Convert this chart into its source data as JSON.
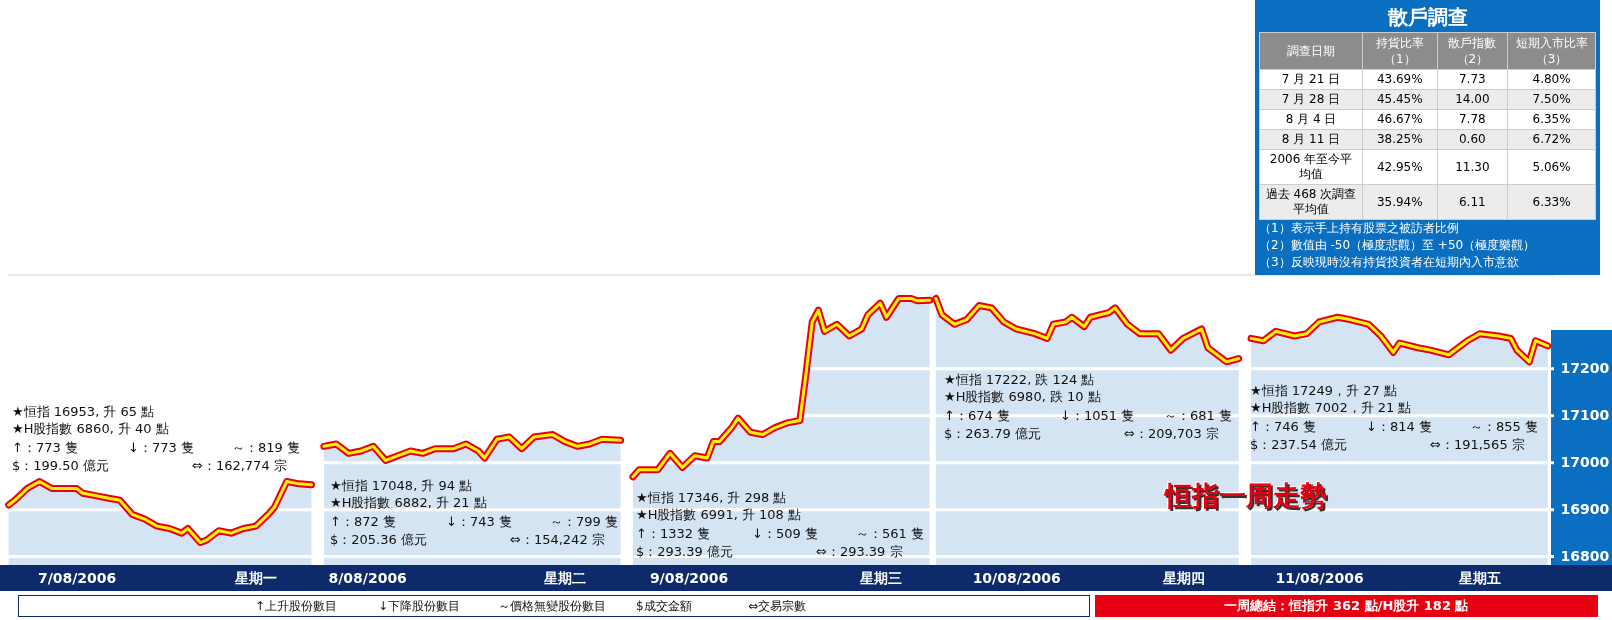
{
  "chart_data": [
    {
      "type": "area",
      "title": "恒指一周走勢",
      "categories": [
        null,
        null,
        null,
        null,
        null,
        null,
        null,
        null,
        null,
        null,
        null,
        "7/08/2006",
        null,
        null,
        null,
        null,
        null,
        null,
        null,
        null,
        null,
        null,
        null,
        null,
        null,
        null,
        null,
        null,
        null,
        null,
        null,
        null,
        null,
        null,
        null,
        null,
        null,
        null,
        null,
        null,
        "星期一",
        null,
        null,
        null,
        null,
        null,
        null,
        null,
        null,
        null,
        null,
        null,
        null,
        null,
        null,
        null,
        null,
        null,
        "8/08/2006",
        null,
        null,
        null,
        null,
        null,
        null,
        null,
        null,
        null,
        null,
        null,
        null,
        null,
        null,
        null,
        null,
        null,
        null,
        null,
        null,
        null,
        null,
        null,
        null,
        null,
        null,
        null,
        null,
        null,
        null,
        null,
        "星期二",
        null,
        null,
        null,
        null,
        null,
        null,
        null,
        null,
        null,
        null,
        null,
        null,
        null,
        null,
        null,
        null,
        null,
        null,
        null,
        "9/08/2006",
        null,
        null,
        null,
        null,
        null,
        null,
        null,
        null,
        null,
        null,
        null,
        null,
        null,
        null,
        null,
        null,
        null,
        null,
        null,
        null,
        null,
        null,
        null,
        null,
        null,
        null,
        null,
        null,
        null,
        null,
        "星期三",
        null,
        null,
        null,
        null,
        null,
        null,
        null,
        null,
        null,
        null,
        null,
        null,
        null,
        null,
        null,
        null,
        null,
        null,
        null,
        null,
        null,
        "10/08/2006",
        null,
        null,
        null,
        null,
        null,
        null,
        null,
        null,
        null,
        null,
        null,
        null,
        null,
        null,
        null,
        null,
        null,
        null,
        null,
        null,
        null,
        null,
        null,
        null,
        null,
        null,
        "星期四",
        null,
        null,
        null,
        null,
        null,
        null,
        null,
        null,
        null,
        null,
        null,
        null,
        null,
        null,
        null,
        null,
        null,
        null,
        null,
        null,
        null,
        "11/08/2006",
        null,
        null,
        null,
        null,
        null,
        null,
        null,
        null,
        null,
        null,
        null,
        null,
        null,
        null,
        null,
        null,
        null,
        null,
        null,
        null,
        null,
        null,
        null,
        null,
        null,
        "星期五",
        null,
        null,
        null,
        null,
        null,
        null,
        null,
        null,
        null,
        null,
        null
      ],
      "ylim": [
        16780,
        17400
      ],
      "yticks": [
        16800,
        16900,
        17000,
        17100,
        17200
      ],
      "grid": "y",
      "series": [
        {
          "color": "#d5e4f3",
          "values": [
            16910,
            16920,
            null,
            16945,
            null,
            16960,
            null,
            16945,
            null,
            16945,
            null,
            16945,
            16935,
            null,
            16930,
            null,
            16925,
            null,
            16920,
            null,
            16890,
            null,
            16880,
            null,
            16865,
            null,
            16860,
            null,
            16850,
            16860,
            null,
            16830,
            16835,
            null,
            16855,
            null,
            16850,
            null,
            16860,
            null,
            16865,
            null,
            16890,
            16905,
            null,
            16960,
            null,
            16955,
            null,
            16953,
            null,
            null,
            null,
            null,
            null,
            null,
            null,
            null,
            null,
            null,
            null,
            null,
            null,
            null,
            null,
            null,
            null,
            null,
            null,
            null,
            null,
            null,
            null,
            null,
            null,
            null,
            null,
            null,
            null,
            null,
            null,
            null,
            null,
            null,
            null,
            null,
            null,
            null,
            null,
            null,
            null,
            null,
            null,
            null,
            null,
            null,
            null,
            null,
            null,
            null,
            null,
            null,
            null,
            null,
            null,
            null,
            null,
            null,
            null,
            null,
            null,
            null,
            null,
            null,
            null,
            null,
            null,
            null,
            null,
            null,
            null,
            null,
            null,
            null,
            null,
            null,
            null,
            null,
            null,
            null,
            null,
            null,
            null,
            null,
            null,
            null,
            null,
            null,
            null,
            null,
            null,
            null,
            null,
            null,
            null,
            null,
            null,
            null,
            null,
            null,
            null,
            null,
            null,
            null,
            null,
            null,
            null,
            null,
            null,
            null,
            null,
            null,
            null,
            null,
            null,
            null,
            null,
            null,
            null,
            null,
            null,
            null,
            null,
            null,
            null,
            null,
            null,
            null,
            null,
            null,
            null,
            null,
            null,
            null,
            null,
            null,
            null,
            null,
            null,
            null,
            null,
            null,
            null,
            null,
            null,
            null,
            null,
            null,
            null,
            null,
            null,
            null,
            null,
            null,
            null,
            null,
            null,
            null,
            null,
            null,
            null,
            null,
            null,
            null,
            null,
            null,
            null,
            null,
            null,
            null,
            null,
            null,
            null,
            null,
            null,
            null,
            null,
            null,
            null,
            null,
            null,
            null,
            null,
            null,
            null,
            null,
            null,
            null,
            null,
            null,
            null,
            null,
            null,
            null,
            null,
            null,
            null,
            null,
            null,
            null
          ]
        },
        {
          "color": "#d5e4f3",
          "values": [
            null,
            null,
            null,
            null,
            null,
            null,
            null,
            null,
            null,
            null,
            null,
            null,
            null,
            null,
            null,
            null,
            null,
            null,
            null,
            null,
            null,
            null,
            null,
            null,
            null,
            null,
            null,
            null,
            null,
            null,
            null,
            null,
            null,
            null,
            null,
            null,
            null,
            null,
            null,
            null,
            null,
            null,
            null,
            null,
            null,
            null,
            null,
            null,
            null,
            null,
            null,
            17035,
            null,
            17040,
            null,
            17020,
            null,
            17025,
            null,
            17035,
            null,
            17005,
            null,
            17015,
            null,
            17025,
            null,
            17020,
            null,
            17030,
            null,
            null,
            17030,
            null,
            17040,
            null,
            17025,
            17010,
            null,
            17050,
            null,
            17055,
            null,
            17030,
            null,
            17055,
            null,
            null,
            17060,
            null,
            17045,
            null,
            17035,
            null,
            17040,
            null,
            17050,
            null,
            null,
            17048,
            null,
            null,
            null,
            null,
            null,
            null,
            null,
            null,
            null,
            null,
            null,
            null,
            null,
            null,
            null,
            null,
            null,
            null,
            null,
            null,
            null,
            null,
            null,
            null,
            null,
            null,
            null,
            null,
            null,
            null,
            null,
            null,
            null,
            null,
            null,
            null,
            null,
            null,
            null,
            null,
            null,
            null,
            null,
            null,
            null,
            null,
            null,
            null,
            null,
            null,
            null,
            null,
            null,
            null,
            null,
            null,
            null,
            null,
            null,
            null,
            null,
            null,
            null,
            null,
            null,
            null,
            null,
            null,
            null,
            null,
            null,
            null,
            null,
            null,
            null,
            null,
            null,
            null,
            null,
            null,
            null,
            null,
            null,
            null,
            null,
            null,
            null,
            null,
            null,
            null,
            null,
            null,
            null,
            null,
            null,
            null,
            null,
            null,
            null,
            null,
            null,
            null,
            null,
            null,
            null,
            null,
            null,
            null,
            null,
            null,
            null,
            null,
            null,
            null,
            null,
            null,
            null,
            null,
            null,
            null,
            null,
            null,
            null,
            null,
            null,
            null,
            null,
            null,
            null,
            null,
            null,
            null,
            null,
            null,
            null,
            null,
            null,
            null,
            null,
            null,
            null,
            null,
            null,
            null,
            null,
            null,
            null,
            null,
            null,
            null
          ]
        },
        {
          "color": "#d5e4f3",
          "values": [
            null,
            null,
            null,
            null,
            null,
            null,
            null,
            null,
            null,
            null,
            null,
            null,
            null,
            null,
            null,
            null,
            null,
            null,
            null,
            null,
            null,
            null,
            null,
            null,
            null,
            null,
            null,
            null,
            null,
            null,
            null,
            null,
            null,
            null,
            null,
            null,
            null,
            null,
            null,
            null,
            null,
            null,
            null,
            null,
            null,
            null,
            null,
            null,
            null,
            null,
            null,
            null,
            null,
            null,
            null,
            null,
            null,
            null,
            null,
            null,
            null,
            null,
            null,
            null,
            null,
            null,
            null,
            null,
            null,
            null,
            null,
            null,
            null,
            null,
            null,
            null,
            null,
            null,
            null,
            null,
            null,
            null,
            null,
            null,
            null,
            null,
            null,
            null,
            null,
            null,
            null,
            null,
            null,
            null,
            null,
            null,
            null,
            null,
            null,
            null,
            null,
            16970,
            16985,
            null,
            null,
            16985,
            null,
            17020,
            null,
            16990,
            null,
            17015,
            null,
            17010,
            17045,
            17045,
            null,
            17075,
            17095,
            null,
            17065,
            null,
            17060,
            null,
            17075,
            null,
            17085,
            null,
            17090,
            17190,
            17300,
            17325,
            17280,
            null,
            17295,
            null,
            17270,
            null,
            17285,
            17315,
            null,
            17340,
            17310,
            null,
            17350,
            null,
            17350,
            17345,
            null,
            17346,
            null,
            null,
            null,
            null,
            null,
            null,
            null,
            null,
            null,
            null,
            null,
            null,
            null,
            null,
            null,
            null,
            null,
            null,
            null,
            null,
            null,
            null,
            null,
            null,
            null,
            null,
            null,
            null,
            null,
            null,
            null,
            null,
            null,
            null,
            null,
            null,
            null,
            null,
            null,
            null,
            null,
            null,
            null,
            null,
            null,
            null,
            null,
            null,
            null,
            null,
            null,
            null,
            null,
            null,
            null,
            null,
            null,
            null,
            null,
            null,
            null,
            null,
            null,
            null,
            null,
            null,
            null,
            null,
            null,
            null,
            null,
            null,
            null,
            null,
            null,
            null,
            null,
            null,
            null,
            null,
            null,
            null,
            null,
            null,
            null,
            null,
            null,
            null,
            null,
            null,
            null,
            null,
            null,
            null,
            null,
            null,
            null,
            null,
            null,
            null
          ]
        },
        {
          "color": "#d5e4f3",
          "values": [
            null,
            null,
            null,
            null,
            null,
            null,
            null,
            null,
            null,
            null,
            null,
            null,
            null,
            null,
            null,
            null,
            null,
            null,
            null,
            null,
            null,
            null,
            null,
            null,
            null,
            null,
            null,
            null,
            null,
            null,
            null,
            null,
            null,
            null,
            null,
            null,
            null,
            null,
            null,
            null,
            null,
            null,
            null,
            null,
            null,
            null,
            null,
            null,
            null,
            null,
            null,
            null,
            null,
            null,
            null,
            null,
            null,
            null,
            null,
            null,
            null,
            null,
            null,
            null,
            null,
            null,
            null,
            null,
            null,
            null,
            null,
            null,
            null,
            null,
            null,
            null,
            null,
            null,
            null,
            null,
            null,
            null,
            null,
            null,
            null,
            null,
            null,
            null,
            null,
            null,
            null,
            null,
            null,
            null,
            null,
            null,
            null,
            null,
            null,
            null,
            null,
            null,
            null,
            null,
            null,
            null,
            null,
            null,
            null,
            null,
            null,
            null,
            null,
            null,
            null,
            null,
            null,
            null,
            null,
            null,
            null,
            null,
            null,
            null,
            null,
            null,
            null,
            null,
            null,
            null,
            null,
            null,
            null,
            null,
            null,
            null,
            null,
            null,
            null,
            null,
            null,
            null,
            null,
            null,
            null,
            null,
            null,
            null,
            null,
            null,
            17350,
            17315,
            null,
            17295,
            null,
            17305,
            null,
            17335,
            null,
            17330,
            null,
            17300,
            null,
            17285,
            null,
            null,
            17275,
            null,
            17265,
            17295,
            null,
            17300,
            17310,
            null,
            17290,
            17310,
            null,
            null,
            17320,
            17330,
            null,
            17295,
            null,
            17275,
            null,
            null,
            17275,
            null,
            17240,
            null,
            17265,
            null,
            null,
            17285,
            17245,
            null,
            null,
            17215,
            null,
            17222,
            null,
            null,
            null,
            null,
            null,
            null,
            null,
            null,
            null,
            null,
            null,
            null,
            null,
            null,
            null,
            null,
            null,
            null,
            null,
            null,
            null,
            null,
            null,
            null,
            null,
            null,
            null,
            null,
            null,
            null,
            null,
            null,
            null,
            null,
            null,
            null,
            null,
            null,
            null,
            null,
            null,
            null,
            null,
            null,
            null,
            null,
            null,
            null,
            null,
            null
          ]
        },
        {
          "color": "#d5e4f3",
          "values": [
            null,
            null,
            null,
            null,
            null,
            null,
            null,
            null,
            null,
            null,
            null,
            null,
            null,
            null,
            null,
            null,
            null,
            null,
            null,
            null,
            null,
            null,
            null,
            null,
            null,
            null,
            null,
            null,
            null,
            null,
            null,
            null,
            null,
            null,
            null,
            null,
            null,
            null,
            null,
            null,
            null,
            null,
            null,
            null,
            null,
            null,
            null,
            null,
            null,
            null,
            null,
            null,
            null,
            null,
            null,
            null,
            null,
            null,
            null,
            null,
            null,
            null,
            null,
            null,
            null,
            null,
            null,
            null,
            null,
            null,
            null,
            null,
            null,
            null,
            null,
            null,
            null,
            null,
            null,
            null,
            null,
            null,
            null,
            null,
            null,
            null,
            null,
            null,
            null,
            null,
            null,
            null,
            null,
            null,
            null,
            null,
            null,
            null,
            null,
            null,
            null,
            null,
            null,
            null,
            null,
            null,
            null,
            null,
            null,
            null,
            null,
            null,
            null,
            null,
            null,
            null,
            null,
            null,
            null,
            null,
            null,
            null,
            null,
            null,
            null,
            null,
            null,
            null,
            null,
            null,
            null,
            null,
            null,
            null,
            null,
            null,
            null,
            null,
            null,
            null,
            null,
            null,
            null,
            null,
            null,
            null,
            null,
            null,
            null,
            null,
            null,
            null,
            null,
            null,
            null,
            null,
            null,
            null,
            null,
            null,
            null,
            null,
            null,
            null,
            null,
            null,
            null,
            null,
            null,
            null,
            null,
            null,
            null,
            null,
            null,
            null,
            null,
            null,
            null,
            null,
            null,
            null,
            null,
            null,
            null,
            null,
            null,
            null,
            null,
            null,
            null,
            null,
            null,
            null,
            null,
            null,
            null,
            null,
            null,
            null,
            null,
            17265,
            null,
            17260,
            null,
            17280,
            null,
            null,
            17270,
            null,
            17275,
            null,
            17300,
            null,
            null,
            17310,
            null,
            17305,
            null,
            null,
            17295,
            null,
            17270,
            null,
            17235,
            17255,
            null,
            null,
            17245,
            null,
            17240,
            null,
            null,
            17230,
            null,
            null,
            17260,
            null,
            17275,
            null,
            null,
            17270,
            null,
            17265,
            17240,
            null,
            17215,
            17260,
            null,
            17249
          ]
        }
      ],
      "annotations": [
        "★恒指 16953, 升 65 點",
        "★H股指數 6860, 升 40 點",
        "↑：773 隻",
        "↓：773 隻",
        "～：819 隻",
        "$：199.50 億元",
        "⇔：162,774 宗",
        "★恒指 17048, 升 94 點",
        "★H股指數 6882, 升 21 點",
        "↑：872 隻",
        "↓：743 隻",
        "～：799 隻",
        "$：205.36 億元",
        "⇔：154,242 宗",
        "★恒指 17346, 升 298 點",
        "★H股指數 6991, 升 108 點",
        "↑：1332 隻",
        "↓：509 隻",
        "～：561 隻",
        "$：293.39 億元",
        "⇔：293.39 宗",
        "★恒指 17222, 跌 124 點",
        "★H股指數 6980, 跌 10 點",
        "↑：674 隻",
        "↓：1051 隻",
        "～：681 隻",
        "$：263.79 億元",
        "⇔：209,703 宗",
        "★恒指 17249，升 27 點",
        "★H股指數 7002，升 21 點",
        "↑：746 隻",
        "↓：814 隻",
        "～：855 隻",
        "$：237.54 億元",
        "⇔：191,565 宗",
        "↑上升股份數目",
        "↓下降股份數目",
        "～價格無變股份數目",
        "$成交金額",
        "⇔交易宗數",
        "一周總結：恒指升 362 點/H股升 182 點"
      ]
    },
    {
      "type": "other",
      "title": "散戶調查",
      "categories": [
        "調查日期",
        "持貨比率（1）",
        "散戶指數（2）",
        "短期入市比率（3）"
      ],
      "y_categories": [
        "7 月 21 日",
        "7 月 28 日",
        "8 月 4 日",
        "8 月 11 日",
        "2006 年至今平均值",
        "過去 468 次調查平均值"
      ],
      "cell_labels": [
        [
          "43.69%",
          "7.73",
          "4.80%"
        ],
        [
          "45.45%",
          "14.00",
          "7.50%"
        ],
        [
          "46.67%",
          "7.78",
          "6.35%"
        ],
        [
          "38.25%",
          "0.60",
          "6.72%"
        ],
        [
          "42.95%",
          "11.30",
          "5.06%"
        ],
        [
          "35.94%",
          "6.11",
          "6.33%"
        ]
      ],
      "annotations": [
        "（1）表示手上持有股票之被訪者比例",
        "（2）數值由 -50（極度悲觀）至 +50（極度樂觀）",
        "（3）反映現時沒有持貨投資者在短期內入市意欲"
      ]
    }
  ]
}
